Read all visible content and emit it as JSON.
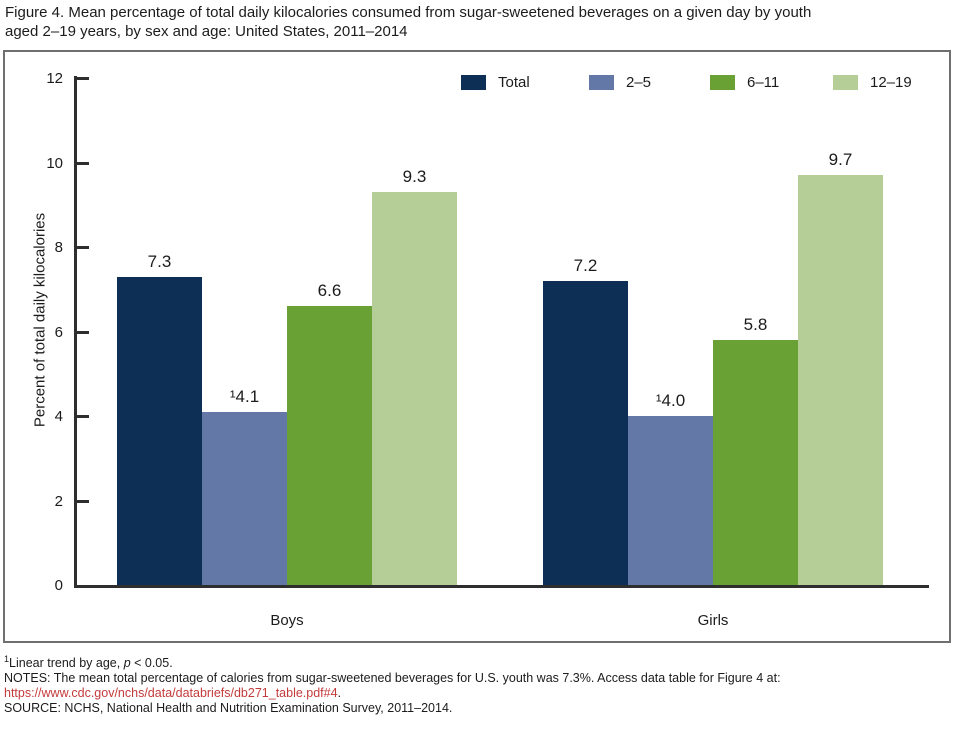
{
  "header": {
    "title_line1": "Figure 4. Mean percentage of total daily kilocalories consumed from sugar-sweetened beverages on a given day by youth",
    "title_line2": "aged 2–19 years, by sex and age: United States, 2011–2014"
  },
  "chart_data": {
    "type": "bar",
    "categories": [
      "Boys",
      "Girls"
    ],
    "series": [
      {
        "name": "Total",
        "color": "#0d2f56",
        "values": [
          7.3,
          7.2
        ],
        "value_labels": [
          "7.3",
          "7.2"
        ]
      },
      {
        "name": "2–5",
        "color": "#6478a8",
        "values": [
          4.1,
          4.0
        ],
        "value_labels": [
          "¹4.1",
          "¹4.0"
        ]
      },
      {
        "name": "6–11",
        "color": "#69a134",
        "values": [
          6.6,
          5.8
        ],
        "value_labels": [
          "6.6",
          "5.8"
        ]
      },
      {
        "name": "12–19",
        "color": "#b5cd96",
        "values": [
          9.3,
          9.7
        ],
        "value_labels": [
          "9.3",
          "9.7"
        ]
      }
    ],
    "ylabel": "Percent of total daily kilocalories",
    "ylim": [
      0,
      12
    ],
    "yticks": [
      0,
      2,
      4,
      6,
      8,
      10,
      12
    ],
    "legend_position": "top-right-inside",
    "grid": false
  },
  "footer": {
    "footnote_marker": "1",
    "footnote_text": "Linear trend by age, ",
    "footnote_p": "p",
    "footnote_rest": " < 0.05.",
    "notes": "NOTES: The mean total percentage of calories from sugar-sweetened beverages for U.S. youth was 7.3%. Access data table for Figure 4 at:",
    "link": "https://www.cdc.gov/nchs/data/databriefs/db271_table.pdf#4",
    "link_suffix": ".",
    "source": "SOURCE: NCHS, National Health and Nutrition Examination Survey, 2011–2014."
  }
}
